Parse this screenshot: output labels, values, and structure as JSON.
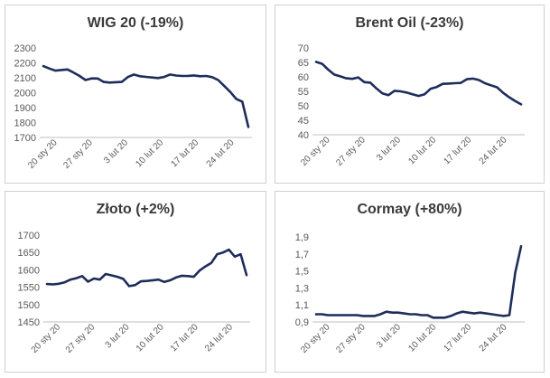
{
  "chart_data": [
    {
      "type": "line",
      "title": "WIG 20 (-19%)",
      "xlabel": "",
      "ylabel": "",
      "yticks": [
        "2300",
        "2200",
        "2100",
        "2000",
        "1900",
        "1800",
        "1700"
      ],
      "ylim": [
        1700,
        2300
      ],
      "xticks": [
        "20 sty 20",
        "27 sty 20",
        "3 lut 20",
        "10 lut 20",
        "17 lut 20",
        "24 lut 20"
      ],
      "series": [
        {
          "color": "#1f2d5a",
          "values": [
            2178,
            2162,
            2148,
            2152,
            2156,
            2135,
            2112,
            2085,
            2096,
            2095,
            2072,
            2068,
            2070,
            2072,
            2105,
            2122,
            2110,
            2106,
            2102,
            2098,
            2105,
            2122,
            2115,
            2112,
            2113,
            2116,
            2110,
            2112,
            2104,
            2085,
            2045,
            2005,
            1958,
            1940,
            1770
          ]
        }
      ],
      "grid": false
    },
    {
      "type": "line",
      "title": "Brent Oil (-23%)",
      "xlabel": "",
      "ylabel": "",
      "yticks": [
        "70",
        "65",
        "60",
        "55",
        "50",
        "45",
        "40"
      ],
      "ylim": [
        40,
        70
      ],
      "xticks": [
        "20 sty 20",
        "27 sty 20",
        "3 lut 20",
        "10 lut 20",
        "17 lut 20",
        "24 lut 20"
      ],
      "series": [
        {
          "color": "#1f2d5a",
          "values": [
            65.2,
            64.5,
            62.5,
            60.8,
            60.2,
            59.5,
            59.3,
            59.8,
            58.2,
            58.0,
            56.0,
            54.3,
            53.7,
            55.2,
            55.0,
            54.6,
            54.0,
            53.4,
            54.0,
            55.9,
            56.5,
            57.6,
            57.7,
            57.8,
            57.9,
            59.2,
            59.4,
            58.9,
            57.8,
            57.1,
            56.4,
            54.5,
            53.0,
            51.7,
            50.5
          ]
        }
      ],
      "grid": false
    },
    {
      "type": "line",
      "title": "Złoto (+2%)",
      "xlabel": "",
      "ylabel": "",
      "yticks": [
        "1700",
        "1650",
        "1600",
        "1550",
        "1500",
        "1450"
      ],
      "ylim": [
        1450,
        1700
      ],
      "xticks": [
        "20 sty 20",
        "27 sty 20",
        "3 lut 20",
        "10 lut 20",
        "17 lut 20",
        "24 lut 20"
      ],
      "series": [
        {
          "color": "#1f2d5a",
          "values": [
            1559,
            1558,
            1560,
            1564,
            1572,
            1576,
            1582,
            1566,
            1575,
            1572,
            1588,
            1584,
            1580,
            1574,
            1553,
            1556,
            1567,
            1568,
            1570,
            1572,
            1565,
            1570,
            1578,
            1583,
            1582,
            1580,
            1598,
            1610,
            1620,
            1645,
            1650,
            1658,
            1638,
            1645,
            1585
          ]
        }
      ],
      "grid": false
    },
    {
      "type": "line",
      "title": "Cormay (+80%)",
      "xlabel": "",
      "ylabel": "",
      "yticks": [
        "1,9",
        "1,7",
        "1,5",
        "1,3",
        "1,1",
        "0,9"
      ],
      "ylim": [
        0.9,
        1.9
      ],
      "xticks": [
        "20 sty 20",
        "27 sty 20",
        "3 lut 20",
        "10 lut 20",
        "17 lut 20",
        "24 lut 20"
      ],
      "series": [
        {
          "color": "#1f2d5a",
          "values": [
            0.99,
            0.99,
            0.98,
            0.98,
            0.98,
            0.98,
            0.98,
            0.98,
            0.97,
            0.97,
            0.97,
            0.99,
            1.02,
            1.01,
            1.01,
            1.0,
            0.99,
            0.99,
            0.98,
            0.98,
            0.95,
            0.95,
            0.95,
            0.97,
            1.0,
            1.02,
            1.01,
            1.0,
            1.01,
            1.0,
            0.99,
            0.98,
            0.97,
            0.98,
            1.48,
            1.79
          ]
        }
      ],
      "grid": false
    }
  ]
}
